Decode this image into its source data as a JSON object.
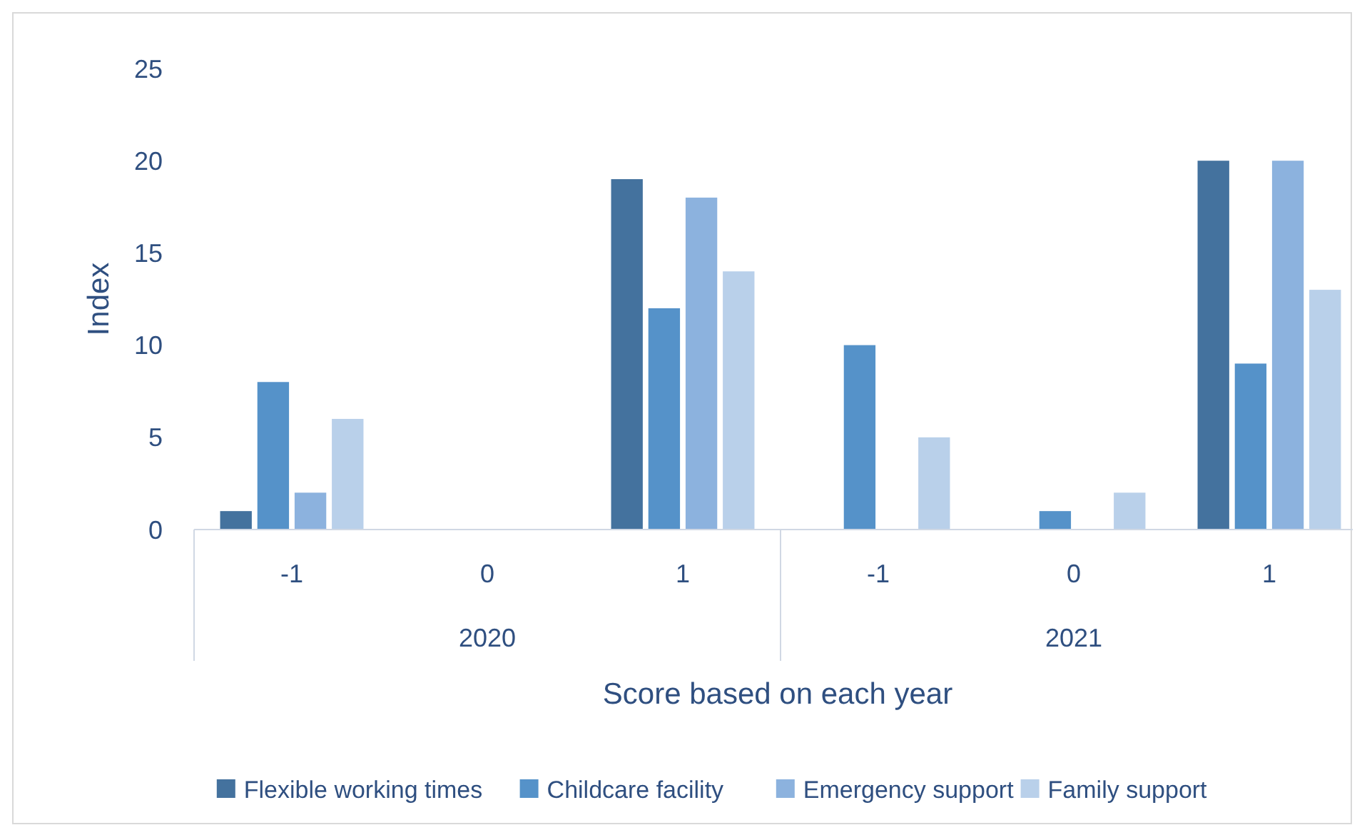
{
  "chart_data": {
    "type": "bar",
    "xlabel": "Score based on each year",
    "ylabel": "Index",
    "categories": [
      "-1",
      "0",
      "1",
      "-1",
      "0",
      "1"
    ],
    "annotations": [
      "2020",
      "2021"
    ],
    "series": [
      {
        "name": "Flexible working times",
        "color": "#44729e",
        "values": [
          1,
          0,
          19,
          0,
          0,
          20
        ]
      },
      {
        "name": "Childcare facility",
        "color": "#5592c9",
        "values": [
          8,
          0,
          12,
          10,
          1,
          9
        ]
      },
      {
        "name": "Emergency support",
        "color": "#8cb2de",
        "values": [
          2,
          0,
          18,
          0,
          0,
          20
        ]
      },
      {
        "name": "Family support",
        "color": "#b9d0ea",
        "values": [
          6,
          0,
          14,
          5,
          2,
          13
        ]
      }
    ],
    "ylim": [
      0,
      25
    ],
    "yticks": [
      0,
      5,
      10,
      15,
      20,
      25
    ],
    "grid": false,
    "legend": "bottom"
  }
}
